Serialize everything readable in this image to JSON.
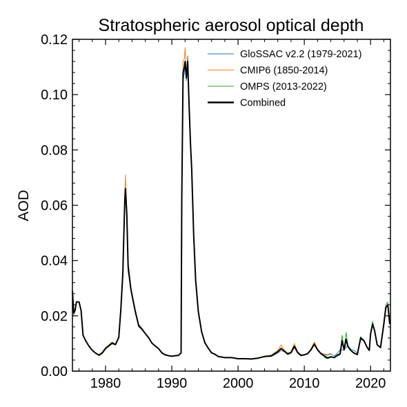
{
  "chart_data": {
    "type": "line",
    "title": "Stratospheric aerosol optical depth",
    "xlabel": "",
    "ylabel": "AOD",
    "xlim": [
      1975,
      2023
    ],
    "ylim": [
      0,
      0.12
    ],
    "x_ticks": [
      1980,
      1990,
      2000,
      2010,
      2020
    ],
    "y_ticks": [
      0,
      0.02,
      0.04,
      0.06,
      0.08,
      0.1,
      0.12
    ],
    "y_tick_labels": [
      "0.00",
      "0.02",
      "0.04",
      "0.06",
      "0.08",
      "0.10",
      "0.12"
    ],
    "grid": false,
    "legend_position": "top-right",
    "series": [
      {
        "name": "GloSSAC v2.2 (1979-2021)",
        "color": "#1f77b4",
        "width": 1,
        "x": [
          1979.0,
          1979.5,
          1980.0,
          1980.5,
          1981.0,
          1981.5,
          1982.0,
          1982.3,
          1982.6,
          1982.9,
          1983.0,
          1983.2,
          1983.4,
          1983.6,
          1983.8,
          1984.0,
          1984.5,
          1985.0,
          1985.5,
          1986.0,
          1986.5,
          1987.0,
          1987.5,
          1988.0,
          1988.5,
          1989.0,
          1989.5,
          1990.0,
          1990.5,
          1991.0,
          1991.4,
          1991.5,
          1991.7,
          1991.9,
          1992.0,
          1992.2,
          1992.4,
          1992.6,
          1992.8,
          1993.0,
          1993.3,
          1993.6,
          1994.0,
          1994.5,
          1995.0,
          1995.5,
          1996.0,
          1996.5,
          1997.0,
          1998.0,
          1999.0,
          2000.0,
          2001.0,
          2002.0,
          2003.0,
          2004.0,
          2005.0,
          2006.0,
          2006.5,
          2007.0,
          2007.5,
          2008.0,
          2008.5,
          2009.0,
          2009.5,
          2010.0,
          2010.5,
          2011.0,
          2011.5,
          2012.0,
          2012.5,
          2013.0,
          2013.5,
          2014.0,
          2014.5,
          2015.0,
          2015.5,
          2016.0,
          2016.5,
          2017.0,
          2017.5,
          2018.0,
          2018.5,
          2019.0,
          2019.5,
          2019.8,
          2020.0,
          2020.3,
          2020.6,
          2021.0
        ],
        "y": [
          0.0055,
          0.0065,
          0.008,
          0.009,
          0.0098,
          0.0095,
          0.012,
          0.022,
          0.035,
          0.06,
          0.063,
          0.055,
          0.036,
          0.033,
          0.03,
          0.027,
          0.021,
          0.016,
          0.015,
          0.0135,
          0.012,
          0.01,
          0.009,
          0.008,
          0.0065,
          0.0058,
          0.0055,
          0.0053,
          0.0055,
          0.0056,
          0.0065,
          0.06,
          0.105,
          0.108,
          0.11,
          0.105,
          0.114,
          0.098,
          0.085,
          0.072,
          0.048,
          0.032,
          0.021,
          0.014,
          0.01,
          0.0082,
          0.0065,
          0.006,
          0.0052,
          0.0048,
          0.0048,
          0.0044,
          0.0044,
          0.0043,
          0.0046,
          0.0052,
          0.0053,
          0.0065,
          0.0075,
          0.007,
          0.006,
          0.0065,
          0.0085,
          0.0065,
          0.0055,
          0.0058,
          0.0062,
          0.0075,
          0.0095,
          0.0075,
          0.0062,
          0.006,
          0.0058,
          0.0062,
          0.0055,
          0.0065,
          0.008,
          0.0075,
          0.0095,
          0.008,
          0.0075,
          0.0065,
          0.0115,
          0.011,
          0.0085,
          0.0075,
          0.013,
          0.0165,
          0.0145,
          0.0095
        ]
      },
      {
        "name": "CMIP6 (1850-2014)",
        "color": "#ff7f0e",
        "width": 1,
        "x": [
          1975.0,
          1975.2,
          1975.4,
          1975.6,
          1976.0,
          1976.3,
          1976.6,
          1977.0,
          1977.5,
          1978.0,
          1978.5,
          1979.0,
          1979.5,
          1980.0,
          1980.5,
          1981.0,
          1981.5,
          1982.0,
          1982.3,
          1982.6,
          1982.9,
          1983.0,
          1983.2,
          1983.4,
          1983.6,
          1983.8,
          1984.0,
          1984.5,
          1985.0,
          1985.5,
          1986.0,
          1986.5,
          1987.0,
          1987.5,
          1988.0,
          1988.5,
          1989.0,
          1989.5,
          1990.0,
          1990.5,
          1991.0,
          1991.4,
          1991.5,
          1991.7,
          1991.9,
          1992.0,
          1992.2,
          1992.4,
          1992.6,
          1992.8,
          1993.0,
          1993.3,
          1993.6,
          1994.0,
          1994.5,
          1995.0,
          1995.5,
          1996.0,
          1996.5,
          1997.0,
          1998.0,
          1999.0,
          2000.0,
          2001.0,
          2002.0,
          2003.0,
          2004.0,
          2005.0,
          2006.0,
          2006.5,
          2007.0,
          2007.5,
          2008.0,
          2008.5,
          2009.0,
          2009.5,
          2010.0,
          2010.5,
          2011.0,
          2011.5,
          2012.0,
          2012.5,
          2013.0,
          2013.5,
          2014.0
        ],
        "y": [
          0.024,
          0.02,
          0.022,
          0.025,
          0.025,
          0.022,
          0.013,
          0.011,
          0.009,
          0.0075,
          0.0065,
          0.006,
          0.007,
          0.0085,
          0.0095,
          0.0105,
          0.0098,
          0.0125,
          0.023,
          0.037,
          0.064,
          0.071,
          0.059,
          0.04,
          0.035,
          0.031,
          0.028,
          0.022,
          0.017,
          0.0155,
          0.0137,
          0.0122,
          0.0102,
          0.0092,
          0.0082,
          0.0068,
          0.006,
          0.0057,
          0.0055,
          0.0057,
          0.0058,
          0.0067,
          0.064,
          0.112,
          0.113,
          0.117,
          0.108,
          0.11,
          0.096,
          0.082,
          0.075,
          0.05,
          0.034,
          0.022,
          0.0145,
          0.0105,
          0.0085,
          0.0068,
          0.0062,
          0.0055,
          0.005,
          0.005,
          0.0046,
          0.0046,
          0.0045,
          0.0048,
          0.0054,
          0.0058,
          0.0075,
          0.0095,
          0.0075,
          0.0065,
          0.007,
          0.01,
          0.007,
          0.006,
          0.006,
          0.0065,
          0.008,
          0.0105,
          0.008,
          0.0065,
          0.0062,
          0.006,
          0.0065
        ]
      },
      {
        "name": "OMPS (2013-2022)",
        "color": "#2ca02c",
        "width": 1,
        "x": [
          2013.0,
          2013.5,
          2014.0,
          2014.5,
          2015.0,
          2015.4,
          2015.7,
          2016.0,
          2016.3,
          2016.6,
          2017.0,
          2017.5,
          2018.0,
          2018.5,
          2019.0,
          2019.5,
          2019.8,
          2020.0,
          2020.3,
          2020.6,
          2021.0,
          2021.5,
          2022.0,
          2022.3,
          2022.6,
          2022.9
        ],
        "y": [
          0.005,
          0.0045,
          0.005,
          0.0048,
          0.0055,
          0.006,
          0.013,
          0.008,
          0.014,
          0.009,
          0.0075,
          0.0065,
          0.006,
          0.0125,
          0.011,
          0.0085,
          0.0075,
          0.014,
          0.018,
          0.015,
          0.0095,
          0.0085,
          0.018,
          0.024,
          0.025,
          0.018
        ]
      },
      {
        "name": "Combined",
        "color": "#000000",
        "width": 2,
        "x": [
          1975.0,
          1975.2,
          1975.4,
          1975.6,
          1976.0,
          1976.3,
          1976.6,
          1977.0,
          1977.5,
          1978.0,
          1978.5,
          1979.0,
          1979.5,
          1980.0,
          1980.5,
          1981.0,
          1981.5,
          1982.0,
          1982.3,
          1982.6,
          1982.9,
          1983.0,
          1983.2,
          1983.4,
          1983.6,
          1983.8,
          1984.0,
          1984.5,
          1985.0,
          1985.5,
          1986.0,
          1986.5,
          1987.0,
          1987.5,
          1988.0,
          1988.5,
          1989.0,
          1989.5,
          1990.0,
          1990.5,
          1991.0,
          1991.4,
          1991.5,
          1991.7,
          1991.9,
          1992.0,
          1992.2,
          1992.4,
          1992.6,
          1992.8,
          1993.0,
          1993.3,
          1993.6,
          1994.0,
          1994.5,
          1995.0,
          1995.5,
          1996.0,
          1996.5,
          1997.0,
          1998.0,
          1999.0,
          2000.0,
          2001.0,
          2002.0,
          2003.0,
          2004.0,
          2005.0,
          2006.0,
          2006.5,
          2007.0,
          2007.5,
          2008.0,
          2008.5,
          2009.0,
          2009.5,
          2010.0,
          2010.5,
          2011.0,
          2011.5,
          2012.0,
          2012.5,
          2013.0,
          2013.5,
          2014.0,
          2014.5,
          2015.0,
          2015.4,
          2015.7,
          2016.0,
          2016.3,
          2016.6,
          2017.0,
          2017.5,
          2018.0,
          2018.5,
          2019.0,
          2019.5,
          2019.8,
          2020.0,
          2020.3,
          2020.6,
          2021.0,
          2021.5,
          2022.0,
          2022.3,
          2022.6,
          2022.9
        ],
        "y": [
          0.029,
          0.021,
          0.022,
          0.025,
          0.025,
          0.022,
          0.013,
          0.011,
          0.009,
          0.0075,
          0.0065,
          0.0058,
          0.0065,
          0.0082,
          0.0092,
          0.0102,
          0.0096,
          0.0122,
          0.022,
          0.035,
          0.062,
          0.066,
          0.057,
          0.038,
          0.034,
          0.03,
          0.0275,
          0.0215,
          0.0165,
          0.0152,
          0.0136,
          0.0121,
          0.0101,
          0.0091,
          0.0081,
          0.0066,
          0.0059,
          0.0056,
          0.0054,
          0.0056,
          0.0057,
          0.0066,
          0.062,
          0.108,
          0.11,
          0.112,
          0.106,
          0.112,
          0.097,
          0.083,
          0.073,
          0.049,
          0.033,
          0.0215,
          0.0142,
          0.0102,
          0.0083,
          0.0066,
          0.0061,
          0.0053,
          0.0049,
          0.0049,
          0.0045,
          0.0045,
          0.0044,
          0.0047,
          0.0053,
          0.0055,
          0.007,
          0.0082,
          0.0072,
          0.0062,
          0.0067,
          0.009,
          0.0067,
          0.0057,
          0.0059,
          0.0063,
          0.0077,
          0.0098,
          0.0077,
          0.0063,
          0.0055,
          0.0048,
          0.0052,
          0.0049,
          0.0058,
          0.0062,
          0.011,
          0.0078,
          0.0115,
          0.0088,
          0.0075,
          0.0065,
          0.006,
          0.012,
          0.011,
          0.0085,
          0.0075,
          0.0135,
          0.017,
          0.0148,
          0.0095,
          0.0085,
          0.017,
          0.023,
          0.024,
          0.017
        ]
      }
    ]
  }
}
